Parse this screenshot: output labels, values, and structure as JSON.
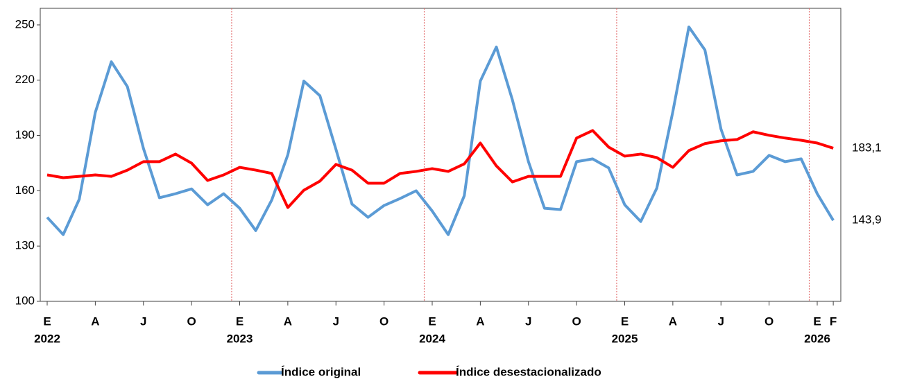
{
  "chart_data": {
    "type": "line",
    "categories": [
      "E",
      null,
      null,
      "A",
      null,
      null,
      "J",
      null,
      null,
      "O",
      null,
      null,
      "E",
      null,
      null,
      "A",
      null,
      null,
      "J",
      null,
      null,
      "O",
      null,
      null,
      "E",
      null,
      null,
      "A",
      null,
      null,
      "J",
      null,
      null,
      "O",
      null,
      null,
      "E",
      null,
      null,
      "A",
      null,
      null,
      "J",
      null,
      null,
      "O",
      null,
      null,
      "E",
      "F"
    ],
    "year_labels": [
      "2022",
      null,
      null,
      null,
      null,
      null,
      null,
      null,
      null,
      null,
      null,
      null,
      "2023",
      null,
      null,
      null,
      null,
      null,
      null,
      null,
      null,
      null,
      null,
      null,
      "2024",
      null,
      null,
      null,
      null,
      null,
      null,
      null,
      null,
      null,
      null,
      null,
      "2025",
      null,
      null,
      null,
      null,
      null,
      null,
      null,
      null,
      null,
      null,
      null,
      "2026",
      null
    ],
    "series": [
      {
        "name": "Índice original",
        "color": "#5b9bd5",
        "label_color": "#1f3864",
        "values": [
          145.6,
          136.2,
          155.4,
          202.5,
          230.0,
          216.5,
          183.0,
          156.2,
          158.4,
          161.0,
          152.4,
          158.4,
          150.5,
          138.4,
          155.0,
          179.5,
          219.5,
          211.6,
          182.5,
          152.8,
          145.6,
          152.0,
          155.8,
          160.0,
          149.0,
          136.2,
          157.3,
          219.5,
          238.0,
          209.3,
          175.8,
          150.5,
          149.8,
          175.8,
          177.3,
          172.4,
          152.4,
          143.3,
          161.4,
          202.9,
          248.9,
          236.4,
          193.5,
          168.6,
          170.5,
          179.2,
          175.8,
          177.3,
          158.4,
          143.9
        ],
        "value_labels": [
          null,
          null,
          null,
          null,
          null,
          null,
          null,
          null,
          null,
          null,
          null,
          null,
          null,
          null,
          null,
          null,
          null,
          null,
          null,
          null,
          null,
          null,
          null,
          null,
          null,
          null,
          null,
          null,
          null,
          null,
          null,
          null,
          null,
          null,
          null,
          null,
          null,
          null,
          null,
          null,
          null,
          null,
          null,
          null,
          null,
          null,
          null,
          null,
          null,
          "143,9"
        ]
      },
      {
        "name": "Índice desestacionalizado",
        "color": "#ff0000",
        "label_color": "#c00000",
        "values": [
          168.6,
          167.1,
          167.8,
          168.6,
          167.8,
          171.2,
          175.8,
          175.8,
          179.9,
          175.0,
          165.6,
          168.6,
          172.7,
          171.2,
          169.4,
          150.9,
          160.3,
          165.2,
          174.3,
          171.2,
          164.1,
          164.1,
          169.4,
          170.5,
          172.0,
          170.5,
          174.6,
          185.9,
          173.5,
          164.8,
          167.8,
          167.8,
          167.8,
          188.6,
          192.7,
          183.7,
          178.8,
          179.9,
          178.0,
          172.7,
          181.8,
          185.6,
          187.1,
          187.8,
          192.0,
          190.1,
          188.6,
          187.4,
          185.9,
          183.1
        ],
        "value_labels": [
          null,
          null,
          null,
          null,
          null,
          null,
          null,
          null,
          null,
          null,
          null,
          null,
          null,
          null,
          null,
          null,
          null,
          null,
          null,
          null,
          null,
          null,
          null,
          null,
          null,
          null,
          null,
          null,
          null,
          null,
          null,
          null,
          null,
          null,
          null,
          null,
          null,
          null,
          null,
          null,
          null,
          null,
          null,
          null,
          null,
          null,
          null,
          null,
          null,
          "183,1"
        ]
      }
    ],
    "ylim": [
      100,
      259
    ],
    "yticks": [
      100,
      130,
      160,
      190,
      220,
      250
    ],
    "year_separator_color": "#e06060"
  }
}
